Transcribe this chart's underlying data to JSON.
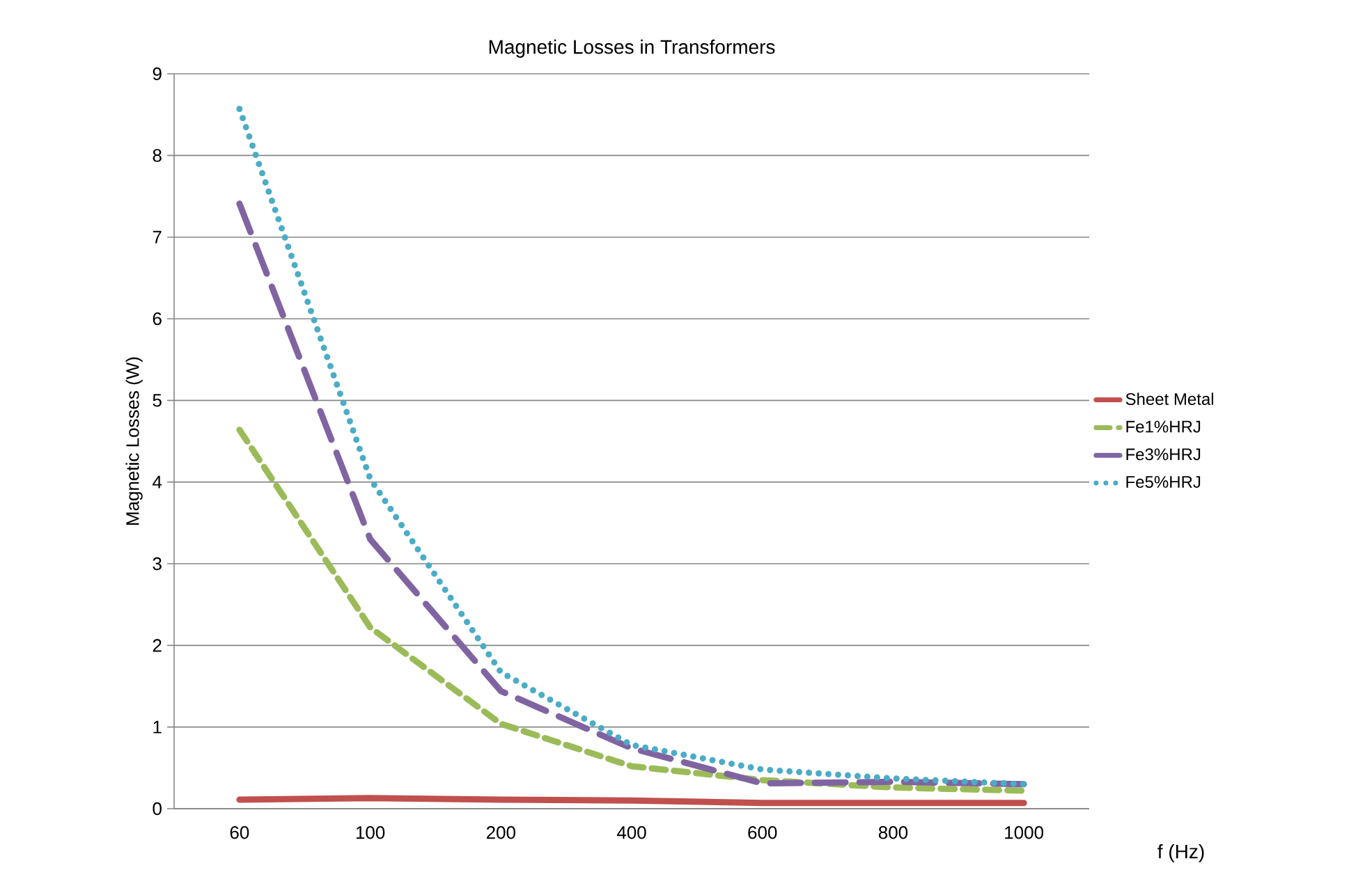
{
  "chart_data": {
    "type": "line",
    "title": "Magnetic Losses in Transformers",
    "xlabel": "f (Hz)",
    "ylabel": "Magnetic Losses (W)",
    "categories": [
      "60",
      "100",
      "200",
      "400",
      "600",
      "800",
      "1000"
    ],
    "ylim": [
      0,
      9
    ],
    "yticks": [
      0,
      1,
      2,
      3,
      4,
      5,
      6,
      7,
      8,
      9
    ],
    "grid": "y",
    "legend": "right",
    "series": [
      {
        "name": "Sheet Metal",
        "color": "#c0504d",
        "line_style": "solid",
        "values": [
          0.11,
          0.13,
          0.11,
          0.1,
          0.07,
          0.07,
          0.07
        ]
      },
      {
        "name": "Fe1%HRJ",
        "color": "#9bbb59",
        "line_style": "dashed",
        "values": [
          4.64,
          2.22,
          1.04,
          0.52,
          0.35,
          0.26,
          0.22
        ]
      },
      {
        "name": "Fe3%HRJ",
        "color": "#8064a2",
        "line_style": "dashed",
        "values": [
          7.41,
          3.3,
          1.44,
          0.74,
          0.31,
          0.33,
          0.3
        ]
      },
      {
        "name": "Fe5%HRJ",
        "color": "#4bacc6",
        "line_style": "dotted",
        "values": [
          8.57,
          4.04,
          1.67,
          0.78,
          0.48,
          0.37,
          0.3
        ]
      }
    ]
  }
}
